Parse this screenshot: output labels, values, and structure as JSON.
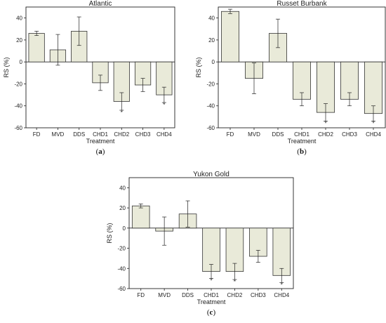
{
  "colors": {
    "bar_fill": "#e9ead9",
    "bar_stroke": "#333333",
    "axis": "#222222"
  },
  "chart_data": [
    {
      "type": "bar",
      "title": "Atlantic",
      "xlabel": "Treatment",
      "ylabel": "RS (%)",
      "caption": "a",
      "categories": [
        "FD",
        "MVD",
        "DDS",
        "CHD1",
        "CHD2",
        "CHD3",
        "CHD4"
      ],
      "values": [
        26,
        11,
        28,
        -19,
        -36,
        -21,
        -30
      ],
      "errors": [
        2,
        14,
        13,
        7,
        8,
        6,
        7
      ],
      "marks": [
        "",
        "",
        "",
        "",
        "*",
        "",
        "*"
      ],
      "ylim": [
        -60,
        50
      ],
      "yticks": [
        -60,
        -40,
        -20,
        0,
        20,
        40
      ]
    },
    {
      "type": "bar",
      "title": "Russet Burbank",
      "xlabel": "Treatment",
      "ylabel": "RS (%)",
      "caption": "b",
      "categories": [
        "FD",
        "MVD",
        "DDS",
        "CHD1",
        "CHD2",
        "CHD3",
        "CHD4"
      ],
      "values": [
        46,
        -15,
        26,
        -34,
        -46,
        -34,
        -47
      ],
      "errors": [
        2,
        14,
        13,
        6,
        8,
        6,
        7
      ],
      "marks": [
        "",
        "",
        "",
        "",
        "*",
        "",
        "*"
      ],
      "ylim": [
        -60,
        50
      ],
      "yticks": [
        -60,
        -40,
        -20,
        0,
        20,
        40
      ]
    },
    {
      "type": "bar",
      "title": "Yukon Gold",
      "xlabel": "Treatment",
      "ylabel": "RS (%)",
      "caption": "c",
      "categories": [
        "FD",
        "MVD",
        "DDS",
        "CHD1",
        "CHD2",
        "CHD3",
        "CHD4"
      ],
      "values": [
        22,
        -3,
        14,
        -43,
        -43,
        -28,
        -47
      ],
      "errors": [
        2,
        14,
        13,
        7,
        8,
        6,
        7
      ],
      "marks": [
        "",
        "",
        "",
        "*",
        "*",
        "",
        "*"
      ],
      "ylim": [
        -60,
        50
      ],
      "yticks": [
        -60,
        -40,
        -20,
        0,
        20,
        40
      ]
    }
  ]
}
